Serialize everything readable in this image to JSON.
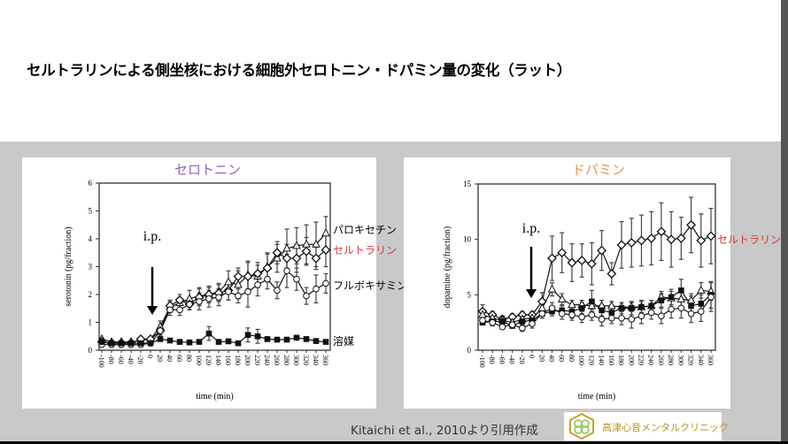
{
  "slide": {
    "title": "セルトラリンによる側坐核における細胞外セロトニン・ドパミン量の変化（ラット）",
    "citation": "Kitaichi et al., 2010より引用作成",
    "logo_text": "高津心音メンタルクリニック"
  },
  "chart_data": [
    {
      "type": "line",
      "title": "セロトニン",
      "title_color": "#8e5fc4",
      "xlabel": "time (min)",
      "ylabel": "serotonin (pg/fraction)",
      "ylim": [
        0,
        6
      ],
      "yticks": [
        "0",
        "1",
        "2",
        "3",
        "4",
        "5",
        "6"
      ],
      "x": [
        -100,
        -80,
        -60,
        -40,
        -20,
        0,
        20,
        40,
        60,
        80,
        100,
        120,
        140,
        160,
        180,
        200,
        220,
        240,
        260,
        280,
        300,
        320,
        340,
        360
      ],
      "annotation": "i.p.",
      "annotation_x": 0,
      "grid": false,
      "series": [
        {
          "name": "パロキセチン",
          "label_color": "#000000",
          "marker": "triangle",
          "values": [
            0.4,
            0.3,
            0.3,
            0.3,
            0.35,
            0.4,
            0.85,
            1.55,
            1.7,
            1.85,
            1.95,
            2.0,
            2.1,
            2.45,
            2.35,
            2.7,
            2.65,
            3.0,
            3.3,
            3.65,
            3.75,
            3.8,
            3.8,
            4.2
          ],
          "err": [
            0.05,
            0.05,
            0.05,
            0.05,
            0.05,
            0.05,
            0.2,
            0.2,
            0.2,
            0.3,
            0.3,
            0.3,
            0.3,
            0.4,
            0.5,
            0.5,
            0.4,
            0.5,
            0.5,
            0.7,
            0.65,
            0.7,
            0.8,
            0.6
          ]
        },
        {
          "name": "セルトラリン",
          "label_color": "#e0303a",
          "marker": "diamond",
          "values": [
            0.3,
            0.25,
            0.25,
            0.25,
            0.4,
            0.4,
            0.7,
            1.6,
            1.8,
            1.65,
            1.9,
            2.0,
            2.05,
            2.15,
            2.65,
            2.65,
            2.75,
            2.95,
            3.5,
            3.3,
            3.3,
            3.55,
            3.3,
            3.6
          ],
          "err": [
            0.05,
            0.05,
            0.05,
            0.05,
            0.05,
            0.05,
            0.2,
            0.2,
            0.2,
            0.2,
            0.3,
            0.25,
            0.3,
            0.35,
            0.3,
            0.5,
            0.4,
            0.5,
            0.4,
            0.5,
            0.5,
            0.5,
            0.4,
            0.6
          ]
        },
        {
          "name": "フルボキサミン",
          "label_color": "#000000",
          "marker": "circle",
          "values": [
            0.2,
            0.2,
            0.2,
            0.2,
            0.2,
            0.25,
            0.7,
            1.45,
            1.45,
            1.65,
            1.75,
            1.85,
            1.9,
            2.1,
            1.95,
            2.1,
            2.35,
            2.55,
            2.15,
            2.85,
            2.55,
            1.95,
            2.2,
            2.4
          ],
          "err": [
            0.05,
            0.05,
            0.05,
            0.05,
            0.05,
            0.05,
            0.15,
            0.2,
            0.2,
            0.2,
            0.3,
            0.3,
            0.3,
            0.3,
            0.25,
            0.55,
            0.4,
            0.35,
            0.3,
            0.6,
            0.4,
            0.3,
            0.5,
            0.35
          ]
        },
        {
          "name": "溶媒",
          "label_color": "#000000",
          "marker": "square",
          "values": [
            0.3,
            0.25,
            0.25,
            0.25,
            0.25,
            0.25,
            0.4,
            0.35,
            0.3,
            0.28,
            0.3,
            0.6,
            0.3,
            0.32,
            0.25,
            0.55,
            0.5,
            0.4,
            0.38,
            0.38,
            0.45,
            0.4,
            0.33,
            0.3
          ],
          "err": [
            0.05,
            0.05,
            0.05,
            0.05,
            0.05,
            0.05,
            0.05,
            0.05,
            0.05,
            0.05,
            0.05,
            0.25,
            0.05,
            0.05,
            0.05,
            0.25,
            0.25,
            0.05,
            0.05,
            0.05,
            0.05,
            0.05,
            0.05,
            0.05
          ]
        }
      ]
    },
    {
      "type": "line",
      "title": "ドパミン",
      "title_color": "#f0904a",
      "xlabel": "time (min)",
      "ylabel": "dopamine (pg/fraction)",
      "ylim": [
        0,
        15
      ],
      "yticks": [
        "0",
        "5",
        "10",
        "15"
      ],
      "x": [
        -100,
        -80,
        -60,
        -40,
        -20,
        0,
        20,
        40,
        60,
        80,
        100,
        120,
        140,
        160,
        180,
        200,
        220,
        240,
        260,
        280,
        300,
        320,
        340,
        360
      ],
      "annotation": "i.p.",
      "annotation_x": 0,
      "grid": false,
      "series": [
        {
          "name": "セルトラリン",
          "label_color": "#e0303a",
          "marker": "diamond",
          "values": [
            3.5,
            3.2,
            2.8,
            3.0,
            3.2,
            3.2,
            4.4,
            8.3,
            8.8,
            7.9,
            8.1,
            7.8,
            9.0,
            6.9,
            9.5,
            9.7,
            9.9,
            10.1,
            10.7,
            10.0,
            10.1,
            11.3,
            9.9,
            10.3
          ],
          "err": [
            0.6,
            0.3,
            0.3,
            0.3,
            0.3,
            0.3,
            0.8,
            2.0,
            1.8,
            1.7,
            1.5,
            1.9,
            1.8,
            1.0,
            2.1,
            2.2,
            2.3,
            2.4,
            2.6,
            2.5,
            1.9,
            2.5,
            2.4,
            2.5
          ]
        },
        {
          "name": "",
          "marker": "triangle",
          "values": [
            3.2,
            2.9,
            2.7,
            2.5,
            2.8,
            2.9,
            3.8,
            5.5,
            4.6,
            4.1,
            4.1,
            4.0,
            4.0,
            4.0,
            3.9,
            3.9,
            3.9,
            4.0,
            4.8,
            4.7,
            4.6,
            4.5,
            5.4,
            5.3
          ],
          "err": [
            0.3,
            0.3,
            0.3,
            0.3,
            0.3,
            0.3,
            0.5,
            0.6,
            0.5,
            0.4,
            0.4,
            0.5,
            0.5,
            0.4,
            0.4,
            0.4,
            0.5,
            0.5,
            0.5,
            0.6,
            0.7,
            0.6,
            0.7,
            0.8
          ]
        },
        {
          "name": "",
          "marker": "square",
          "values": [
            2.5,
            2.6,
            2.6,
            2.2,
            2.6,
            2.7,
            3.3,
            3.5,
            3.6,
            3.5,
            3.8,
            4.4,
            3.6,
            3.4,
            3.8,
            3.8,
            3.9,
            4.0,
            4.5,
            4.8,
            5.4,
            4.0,
            4.2,
            5.0
          ],
          "err": [
            0.2,
            0.2,
            0.2,
            0.2,
            0.2,
            0.3,
            0.4,
            0.4,
            0.4,
            0.6,
            0.5,
            1.0,
            0.5,
            0.4,
            0.5,
            0.6,
            0.6,
            0.5,
            0.6,
            0.7,
            1.0,
            0.9,
            0.8,
            1.2
          ]
        },
        {
          "name": "",
          "marker": "circle",
          "values": [
            2.7,
            2.5,
            2.1,
            2.3,
            2.0,
            2.4,
            3.3,
            3.8,
            3.3,
            3.2,
            3.0,
            3.2,
            2.8,
            2.9,
            2.9,
            2.8,
            3.1,
            3.4,
            3.1,
            3.7,
            3.8,
            3.3,
            3.5,
            4.8
          ],
          "err": [
            0.3,
            0.3,
            0.2,
            0.3,
            0.3,
            0.4,
            0.4,
            0.5,
            0.5,
            0.5,
            0.5,
            0.5,
            0.6,
            0.5,
            0.6,
            0.8,
            0.7,
            0.6,
            0.7,
            0.8,
            0.9,
            0.8,
            0.9,
            1.3
          ]
        }
      ]
    }
  ]
}
